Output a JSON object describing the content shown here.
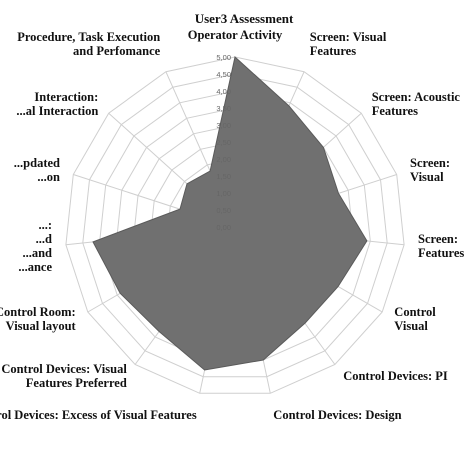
{
  "chart_data": {
    "type": "radar",
    "title": "User3 Assessment",
    "rlim": [
      0,
      5
    ],
    "ticks": [
      "0,00",
      "0,50",
      "1,00",
      "1,50",
      "2,00",
      "2,50",
      "3,00",
      "3,50",
      "4,00",
      "4,50",
      "5,00"
    ],
    "categories": [
      [
        "Operator Activity"
      ],
      [
        "Screen: Visual",
        "Features"
      ],
      [
        "Screen: Acoustic",
        "Features"
      ],
      [
        "Screen:",
        "Visual"
      ],
      [
        "Screen:",
        "Features"
      ],
      [
        "Control",
        "Visual"
      ],
      [
        "Control Devices: PI"
      ],
      [
        "Control Devices: Design"
      ],
      [
        "Control Devices: Excess of Visual Features"
      ],
      [
        "Control Devices: Visual",
        "Features Preferred"
      ],
      [
        "Control Room:",
        "Visual layout"
      ],
      [
        "...:",
        "...d",
        "...and",
        "...ance"
      ],
      [
        "...pdated",
        "...on"
      ],
      [
        "Interaction:",
        "...al Interaction"
      ],
      [
        "Procedure, Task Execution",
        "and Perfomance"
      ]
    ],
    "values": [
      5.0,
      3.9,
      3.5,
      3.2,
      3.9,
      3.5,
      3.5,
      4.0,
      4.3,
      3.8,
      3.9,
      4.2,
      1.7,
      1.9,
      1.8
    ],
    "fill_color": "#707070",
    "grid": true,
    "legend": "none"
  }
}
